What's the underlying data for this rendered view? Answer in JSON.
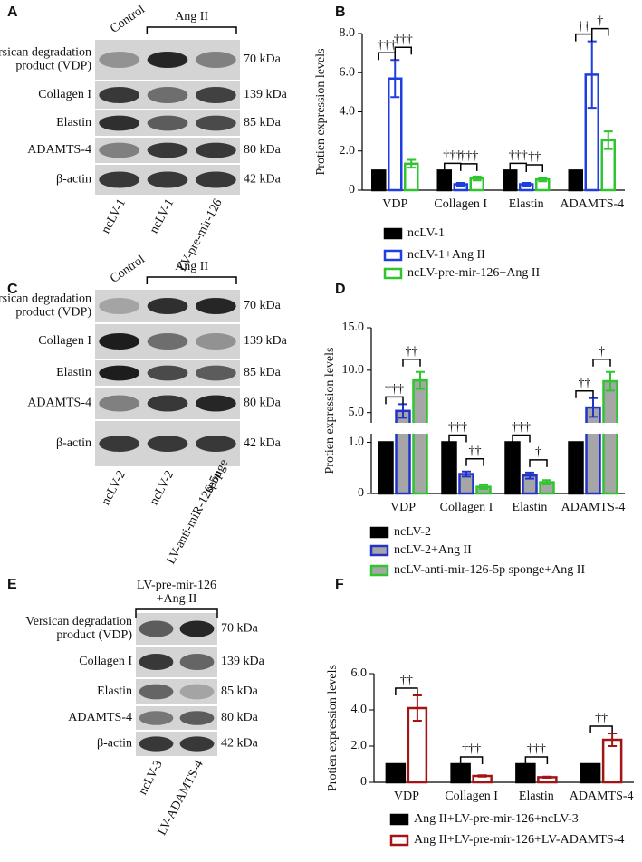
{
  "blots": [
    {
      "panel": "A",
      "control": "Control",
      "treatment": [
        "Ang II"
      ],
      "rows": [
        {
          "label": [
            "Versican degradation",
            "product (VDP)"
          ],
          "kda": "70 kDa"
        },
        {
          "label": [
            "Collagen I"
          ],
          "kda": "139 kDa"
        },
        {
          "label": [
            "Elastin"
          ],
          "kda": "85 kDa"
        },
        {
          "label": [
            "ADAMTS-4"
          ],
          "kda": "80 kDa"
        },
        {
          "label": [
            "β-actin"
          ],
          "kda": "42 kDa"
        }
      ],
      "lanes": [
        [
          "ncLV-1"
        ],
        [
          "ncLV-1"
        ],
        [
          "LV-pre-mir-126"
        ]
      ]
    },
    {
      "panel": "C",
      "control": "Control",
      "treatment": [
        "Ang II"
      ],
      "rows": [
        {
          "label": [
            "Versican degradation",
            "product (VDP)"
          ],
          "kda": "70 kDa"
        },
        {
          "label": [
            "Collagen I"
          ],
          "kda": "139 kDa"
        },
        {
          "label": [
            "Elastin"
          ],
          "kda": "85 kDa"
        },
        {
          "label": [
            "ADAMTS-4"
          ],
          "kda": "80 kDa"
        },
        {
          "label": [
            "β-actin"
          ],
          "kda": "42 kDa"
        }
      ],
      "lanes": [
        [
          "ncLV-2"
        ],
        [
          "ncLV-2"
        ],
        [
          "LV-anti-miR-126-5p",
          "sponge"
        ]
      ]
    },
    {
      "panel": "E",
      "treatment": [
        "LV-pre-mir-126",
        "+Ang II"
      ],
      "rows": [
        {
          "label": [
            "Versican degradation",
            "product (VDP)"
          ],
          "kda": "70 kDa"
        },
        {
          "label": [
            "Collagen I"
          ],
          "kda": "139 kDa"
        },
        {
          "label": [
            "Elastin"
          ],
          "kda": "85 kDa"
        },
        {
          "label": [
            "ADAMTS-4"
          ],
          "kda": "80 kDa"
        },
        {
          "label": [
            "β-actin"
          ],
          "kda": "42 kDa"
        }
      ],
      "lanes": [
        [
          "ncLV-3"
        ],
        [
          "LV-ADAMTS-4"
        ]
      ]
    }
  ],
  "chart_data": [
    {
      "panel": "B",
      "type": "bar",
      "ylabel": "Protien expression levels",
      "categories": [
        "VDP",
        "Collagen I",
        "Elastin",
        "ADAMTS-4"
      ],
      "ylim": [
        0,
        8
      ],
      "yticks": [
        0,
        {
          "value": 2,
          "label": "2.0"
        },
        {
          "value": 4,
          "label": "4.0"
        },
        {
          "value": 6,
          "label": "6.0"
        },
        {
          "value": 8,
          "label": "8.0"
        }
      ],
      "series": [
        {
          "name": "ncLV-1",
          "color": "#000000",
          "fill": "#000000",
          "values": [
            1,
            1,
            1,
            1
          ]
        },
        {
          "name": "ncLV-1+Ang II",
          "color": "#1f3de0",
          "fill": "#ffffff",
          "values": [
            5.7,
            0.3,
            0.3,
            5.9
          ],
          "errors": [
            0.95,
            0.07,
            0.07,
            1.7
          ]
        },
        {
          "name": "ncLV-pre-mir-126+Ang II",
          "color": "#2ec52e",
          "fill": "#ffffff",
          "values": [
            1.35,
            0.6,
            0.55,
            2.55
          ],
          "errors": [
            0.2,
            0.1,
            0.1,
            0.45
          ]
        }
      ],
      "annotations": [
        {
          "text": "†††",
          "category": 0,
          "series": [
            0,
            1
          ]
        },
        {
          "text": "†††",
          "category": 0,
          "series": [
            1,
            2
          ]
        },
        {
          "text": "†††",
          "category": 1,
          "series": [
            0,
            1
          ]
        },
        {
          "text": "†††",
          "category": 1,
          "series": [
            1,
            2
          ]
        },
        {
          "text": "†††",
          "category": 2,
          "series": [
            0,
            1
          ]
        },
        {
          "text": "††",
          "category": 2,
          "series": [
            1,
            2
          ]
        },
        {
          "text": "††",
          "category": 3,
          "series": [
            0,
            1
          ]
        },
        {
          "text": "†",
          "category": 3,
          "series": [
            1,
            2
          ]
        }
      ]
    },
    {
      "panel": "D",
      "type": "bar",
      "ylabel": "Protien expression levels",
      "categories": [
        "VDP",
        "Collagen I",
        "Elastin",
        "ADAMTS-4"
      ],
      "ylim": [
        0,
        15
      ],
      "axis_break": [
        1.15,
        3.9
      ],
      "yticks": [
        0,
        {
          "value": 1,
          "label": "1.0"
        },
        {
          "value": 5,
          "label": "5.0"
        },
        {
          "value": 10,
          "label": "10.0"
        },
        {
          "value": 15,
          "label": "15.0"
        }
      ],
      "series": [
        {
          "name": "ncLV-2",
          "color": "#000000",
          "fill": "#000000",
          "values": [
            1,
            1,
            1,
            1
          ]
        },
        {
          "name": "ncLV-2+Ang II",
          "color": "#2233cc",
          "fill": "#a6a6a6",
          "values": [
            5.2,
            0.38,
            0.35,
            5.6
          ],
          "errors": [
            0.8,
            0.05,
            0.06,
            1.1
          ]
        },
        {
          "name": "ncLV-anti-mir-126-5p sponge+Ang II",
          "color": "#2ec52e",
          "fill": "#a6a6a6",
          "values": [
            8.8,
            0.13,
            0.22,
            8.7
          ],
          "errors": [
            1.0,
            0.04,
            0.04,
            1.1
          ]
        }
      ],
      "annotations": [
        {
          "text": "†††",
          "category": 0,
          "series": [
            0,
            1
          ]
        },
        {
          "text": "††",
          "category": 0,
          "series": [
            1,
            2
          ]
        },
        {
          "text": "†††",
          "category": 1,
          "series": [
            0,
            1
          ]
        },
        {
          "text": "††",
          "category": 1,
          "series": [
            1,
            2
          ]
        },
        {
          "text": "†††",
          "category": 2,
          "series": [
            0,
            1
          ]
        },
        {
          "text": "†",
          "category": 2,
          "series": [
            1,
            2
          ]
        },
        {
          "text": "††",
          "category": 3,
          "series": [
            0,
            1
          ]
        },
        {
          "text": "†",
          "category": 3,
          "series": [
            1,
            2
          ]
        }
      ]
    },
    {
      "panel": "F",
      "type": "bar",
      "ylabel": "Protien expression levels",
      "categories": [
        "VDP",
        "Collagen I",
        "Elastin",
        "ADAMTS-4"
      ],
      "ylim": [
        0,
        6
      ],
      "yticks": [
        0,
        {
          "value": 2,
          "label": "2.0"
        },
        {
          "value": 4,
          "label": "4.0"
        },
        {
          "value": 6,
          "label": "6.0"
        }
      ],
      "series": [
        {
          "name": "Ang II+LV-pre-mir-126+ncLV-3",
          "color": "#000000",
          "fill": "#000000",
          "values": [
            1,
            1,
            1,
            1
          ]
        },
        {
          "name": "Ang II+LV-pre-mir-126+LV-ADAMTS-4",
          "color": "#a31515",
          "fill": "#ffffff",
          "values": [
            4.1,
            0.35,
            0.28,
            2.35
          ],
          "errors": [
            0.7,
            0.04,
            0.03,
            0.35
          ]
        }
      ],
      "annotations": [
        {
          "text": "††",
          "category": 0,
          "series": [
            0,
            1
          ]
        },
        {
          "text": "†††",
          "category": 1,
          "series": [
            0,
            1
          ]
        },
        {
          "text": "†††",
          "category": 2,
          "series": [
            0,
            1
          ]
        },
        {
          "text": "††",
          "category": 3,
          "series": [
            0,
            1
          ]
        }
      ]
    }
  ]
}
